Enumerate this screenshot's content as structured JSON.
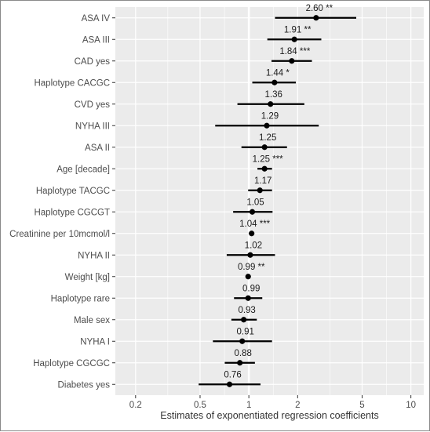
{
  "chart_data": {
    "type": "scatter",
    "subtype": "forest-plot",
    "xlabel": "Estimates of exponentiated regression coefficients",
    "x_scale": "log",
    "xlim": [
      0.15,
      12
    ],
    "x_ticks": [
      0.2,
      0.5,
      1,
      2,
      5,
      10
    ],
    "x_tick_labels": [
      "0.2",
      "0.5",
      "1",
      "2",
      "5",
      "10"
    ],
    "reference_line": 1,
    "grid": true,
    "colors": {
      "panel": "#ebebeb",
      "grid": "#ffffff",
      "marks": "#000000"
    },
    "rows": [
      {
        "term": "ASA IV",
        "estimate": 2.6,
        "lower": 1.45,
        "upper": 4.6,
        "label": "2.60 **"
      },
      {
        "term": "ASA III",
        "estimate": 1.91,
        "lower": 1.3,
        "upper": 2.8,
        "label": "1.91 **"
      },
      {
        "term": "CAD yes",
        "estimate": 1.84,
        "lower": 1.38,
        "upper": 2.45,
        "label": "1.84 ***"
      },
      {
        "term": "Haplotype CACGC",
        "estimate": 1.44,
        "lower": 1.05,
        "upper": 1.95,
        "label": "1.44 *"
      },
      {
        "term": "CVD yes",
        "estimate": 1.36,
        "lower": 0.85,
        "upper": 2.2,
        "label": "1.36"
      },
      {
        "term": "NYHA III",
        "estimate": 1.29,
        "lower": 0.62,
        "upper": 2.7,
        "label": "1.29"
      },
      {
        "term": "ASA II",
        "estimate": 1.25,
        "lower": 0.9,
        "upper": 1.72,
        "label": "1.25"
      },
      {
        "term": "Age [decade]",
        "estimate": 1.25,
        "lower": 1.13,
        "upper": 1.39,
        "label": "1.25 ***"
      },
      {
        "term": "Haplotype TACGC",
        "estimate": 1.17,
        "lower": 0.99,
        "upper": 1.39,
        "label": "1.17"
      },
      {
        "term": "Haplotype CGCGT",
        "estimate": 1.05,
        "lower": 0.8,
        "upper": 1.4,
        "label": "1.05"
      },
      {
        "term": "Creatinine per 10mcmol/l",
        "estimate": 1.04,
        "lower": 1.02,
        "upper": 1.06,
        "label": "1.04 ***"
      },
      {
        "term": "NYHA II",
        "estimate": 1.02,
        "lower": 0.73,
        "upper": 1.45,
        "label": "1.02"
      },
      {
        "term": "Weight [kg]",
        "estimate": 0.99,
        "lower": 0.98,
        "upper": 1.0,
        "label": "0.99 **"
      },
      {
        "term": "Haplotype rare",
        "estimate": 0.99,
        "lower": 0.81,
        "upper": 1.21,
        "label": "0.99"
      },
      {
        "term": "Male sex",
        "estimate": 0.93,
        "lower": 0.78,
        "upper": 1.12,
        "label": "0.93"
      },
      {
        "term": "NYHA I",
        "estimate": 0.91,
        "lower": 0.6,
        "upper": 1.39,
        "label": "0.91"
      },
      {
        "term": "Haplotype CGCGC",
        "estimate": 0.88,
        "lower": 0.71,
        "upper": 1.09,
        "label": "0.88"
      },
      {
        "term": "Diabetes yes",
        "estimate": 0.76,
        "lower": 0.49,
        "upper": 1.18,
        "label": "0.76"
      }
    ]
  }
}
